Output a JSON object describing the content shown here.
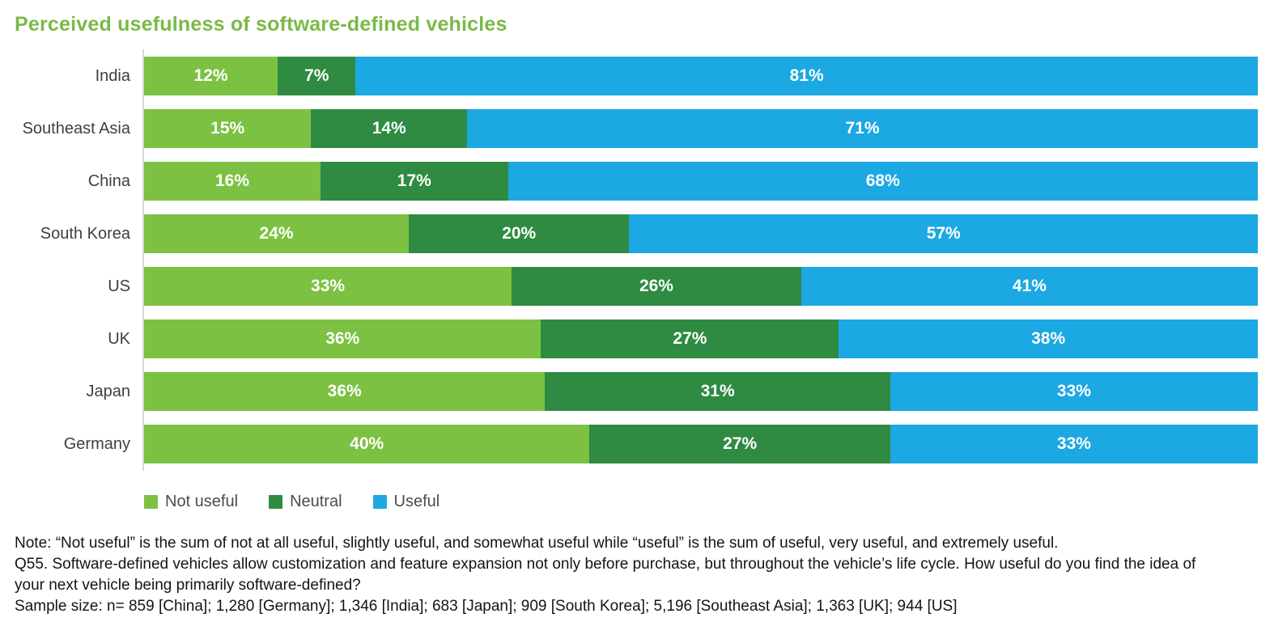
{
  "title": "Perceived usefulness of software-defined vehicles",
  "colors": {
    "title": "#7ab946",
    "not_useful": "#7cc142",
    "neutral": "#2e8b41",
    "useful": "#1ca8e2",
    "axis_line": "#d8d8d8",
    "category_label_text": "#3f3f3f",
    "bar_value_text": "#ffffff",
    "legend_text": "#4d4d4d",
    "note_text": "#141414"
  },
  "chart_data": {
    "type": "bar",
    "orientation": "horizontal",
    "stacked": true,
    "normalized_to_100": true,
    "grid": false,
    "legend_position": "bottom-left",
    "xlim": [
      0,
      100
    ],
    "value_suffix": "%",
    "categories": [
      "India",
      "Southeast Asia",
      "China",
      "South Korea",
      "US",
      "UK",
      "Japan",
      "Germany"
    ],
    "series": [
      {
        "name": "Not useful",
        "color": "#7cc142",
        "values": [
          12,
          15,
          16,
          24,
          33,
          36,
          36,
          40
        ]
      },
      {
        "name": "Neutral",
        "color": "#2e8b41",
        "values": [
          7,
          14,
          17,
          20,
          26,
          27,
          31,
          27
        ]
      },
      {
        "name": "Useful",
        "color": "#1ca8e2",
        "values": [
          81,
          71,
          68,
          57,
          41,
          38,
          33,
          33
        ]
      }
    ]
  },
  "legend": [
    {
      "label": "Not useful",
      "color": "#7cc142"
    },
    {
      "label": "Neutral",
      "color": "#2e8b41"
    },
    {
      "label": "Useful",
      "color": "#1ca8e2"
    }
  ],
  "notes": [
    "Note: “Not useful” is the sum of not at all useful, slightly useful, and somewhat useful while “useful” is the sum of useful, very useful, and extremely useful.",
    "Q55. Software-defined vehicles allow customization and feature expansion not only before purchase, but throughout the vehicle’s life cycle. How useful do you find the idea of your next vehicle being primarily software-defined?",
    "Sample size: n= 859 [China]; 1,280 [Germany]; 1,346 [India]; 683 [Japan]; 909 [South Korea]; 5,196 [Southeast Asia]; 1,363 [UK]; 944 [US]"
  ]
}
